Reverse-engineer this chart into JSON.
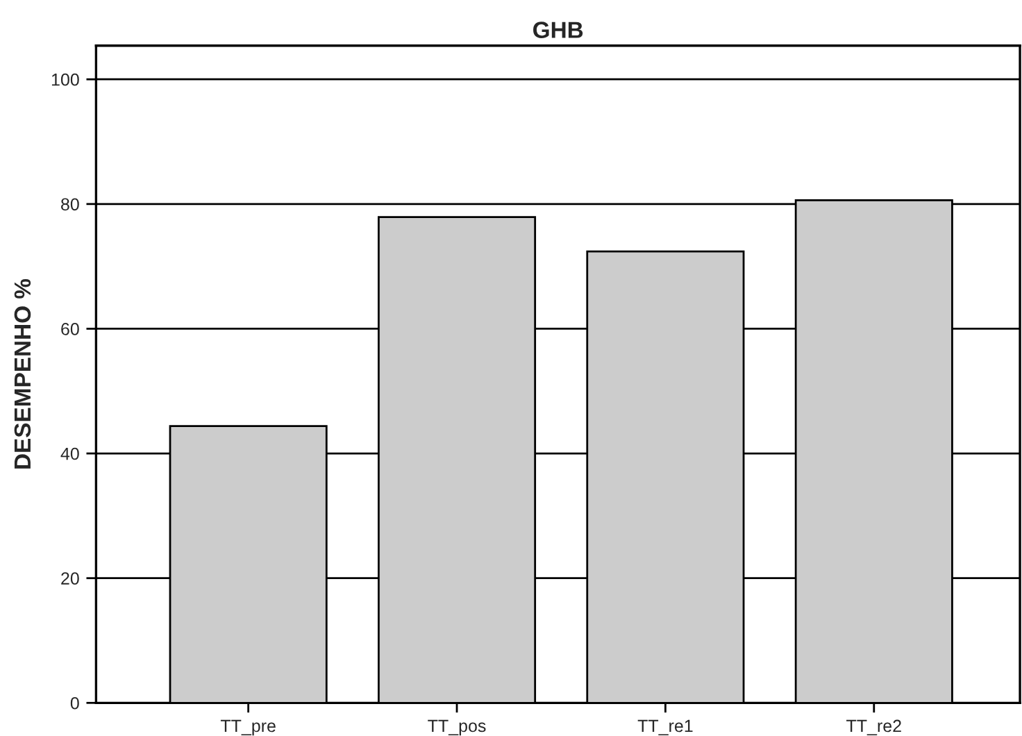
{
  "chart_data": {
    "type": "bar",
    "title": "GHB",
    "ylabel": "DESEMPENHO %",
    "categories": [
      "TT_pre",
      "TT_pos",
      "TT_re1",
      "TT_re2"
    ],
    "values": [
      44.4,
      77.9,
      72.4,
      80.6
    ],
    "color": "#cccccc",
    "ylim": [
      0,
      105.4
    ],
    "yticks": [
      0,
      20,
      40,
      60,
      80,
      100
    ],
    "grid": "y"
  }
}
